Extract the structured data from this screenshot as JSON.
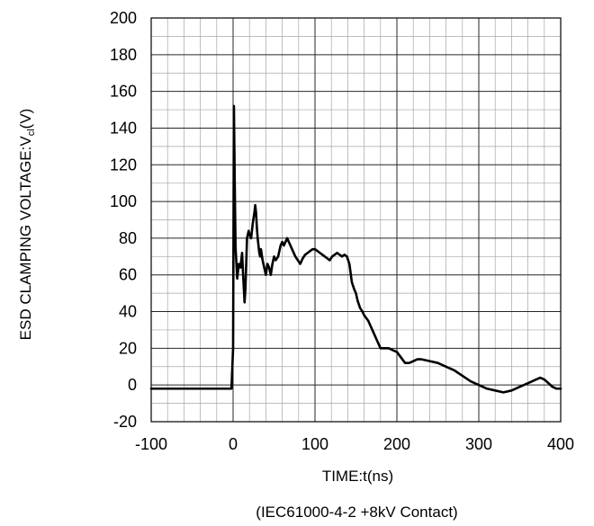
{
  "chart_data": {
    "type": "line",
    "title": "",
    "xlabel": "TIME:t(ns)",
    "subtitle": "(IEC61000-4-2 +8kV Contact)",
    "ylabel": {
      "main": "ESD CLAMPING VOLTAGE:V",
      "subscript": "cl",
      "suffix": "(V)"
    },
    "xlim": [
      -100,
      400
    ],
    "ylim": [
      -20,
      200
    ],
    "xticks": [
      -100,
      0,
      100,
      200,
      300,
      400
    ],
    "yticks": [
      -20,
      0,
      20,
      40,
      60,
      80,
      100,
      120,
      140,
      160,
      180,
      200
    ],
    "xtick_labels": [
      "-100",
      "0",
      "100",
      "200",
      "300",
      "400"
    ],
    "ytick_labels": [
      "-20",
      "0",
      "20",
      "40",
      "60",
      "80",
      "100",
      "120",
      "140",
      "160",
      "180",
      "200"
    ],
    "grid": true,
    "minor_grid": true,
    "legend": "none",
    "series": [
      {
        "color": "#000000",
        "x": [
          -100,
          -60,
          -20,
          -2,
          0,
          1,
          2,
          3,
          5,
          7,
          9,
          11,
          12,
          14,
          15,
          17,
          19,
          20,
          22,
          24,
          26,
          27,
          28,
          29,
          30,
          31,
          32,
          33,
          34,
          36,
          38,
          40,
          42,
          44,
          46,
          48,
          50,
          52,
          55,
          58,
          60,
          62,
          64,
          66,
          68,
          70,
          73,
          76,
          79,
          82,
          85,
          88,
          91,
          94,
          97,
          100,
          103,
          106,
          109,
          112,
          115,
          118,
          121,
          124,
          127,
          130,
          133,
          136,
          139,
          142,
          145,
          148,
          150,
          152,
          155,
          158,
          160,
          165,
          170,
          175,
          180,
          185,
          190,
          195,
          200,
          205,
          210,
          215,
          220,
          225,
          230,
          240,
          250,
          260,
          270,
          280,
          290,
          300,
          310,
          320,
          330,
          340,
          350,
          360,
          370,
          375,
          380,
          385,
          390,
          395,
          400
        ],
        "y": [
          -2,
          -2,
          -2,
          -2,
          20,
          152,
          110,
          75,
          58,
          66,
          64,
          72,
          62,
          45,
          52,
          80,
          84,
          82,
          80,
          88,
          94,
          98,
          94,
          86,
          80,
          76,
          72,
          70,
          74,
          68,
          64,
          60,
          66,
          64,
          60,
          66,
          70,
          68,
          70,
          76,
          78,
          76,
          78,
          80,
          78,
          76,
          73,
          70,
          68,
          66,
          69,
          71,
          72,
          73,
          74,
          74,
          73,
          72,
          71,
          70,
          69,
          68,
          70,
          71,
          72,
          71,
          70,
          71,
          70,
          66,
          56,
          52,
          50,
          46,
          42,
          40,
          38,
          35,
          30,
          25,
          20,
          20,
          20,
          19,
          18,
          15,
          12,
          12,
          13,
          14,
          14,
          13,
          12,
          10,
          8,
          5,
          2,
          0,
          -2,
          -3,
          -4,
          -3,
          -1,
          1,
          3,
          4,
          3,
          1,
          -1,
          -2,
          -2
        ]
      }
    ]
  }
}
